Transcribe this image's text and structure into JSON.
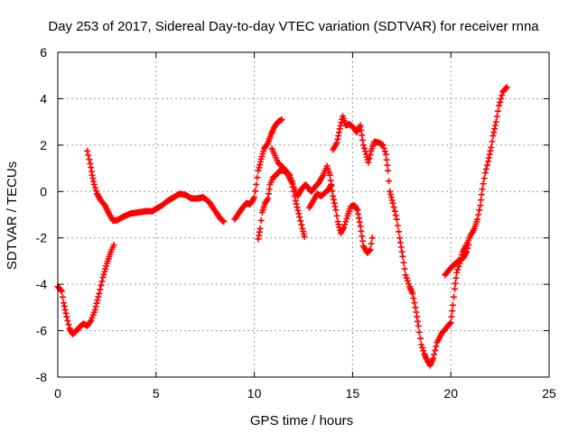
{
  "chart_data": {
    "type": "scatter",
    "title": "Day 253 of 2017, Sidereal Day-to-day VTEC variation (SDTVAR) for receiver rnna",
    "xlabel": "GPS time / hours",
    "ylabel": "SDTVAR / TECUs",
    "xlim": [
      0,
      25
    ],
    "ylim": [
      -8,
      6
    ],
    "xticks": [
      "0",
      "5",
      "10",
      "15",
      "20",
      "25"
    ],
    "yticks": [
      "-8",
      "-6",
      "-4",
      "-2",
      "0",
      "2",
      "4",
      "6"
    ],
    "grid": true,
    "marker": "+",
    "color": "#ff0000",
    "series": [
      {
        "segments": [
          [
            [
              0.0,
              -4.1
            ],
            [
              0.2,
              -4.3
            ],
            [
              0.3,
              -4.8
            ],
            [
              0.45,
              -5.4
            ],
            [
              0.6,
              -5.9
            ],
            [
              0.75,
              -6.15
            ],
            [
              0.9,
              -6.05
            ],
            [
              1.1,
              -5.85
            ],
            [
              1.3,
              -5.7
            ],
            [
              1.5,
              -5.8
            ],
            [
              1.7,
              -5.55
            ],
            [
              1.9,
              -5.1
            ],
            [
              2.1,
              -4.4
            ],
            [
              2.3,
              -3.7
            ],
            [
              2.5,
              -3.1
            ],
            [
              2.7,
              -2.6
            ],
            [
              2.85,
              -2.3
            ]
          ],
          [
            [
              1.5,
              1.75
            ],
            [
              1.65,
              1.2
            ],
            [
              1.75,
              0.7
            ],
            [
              1.85,
              0.3
            ],
            [
              2.0,
              -0.1
            ],
            [
              2.2,
              -0.4
            ],
            [
              2.4,
              -0.6
            ],
            [
              2.6,
              -0.95
            ],
            [
              2.8,
              -1.25
            ],
            [
              3.0,
              -1.25
            ],
            [
              3.3,
              -1.1
            ],
            [
              3.7,
              -0.95
            ],
            [
              4.1,
              -0.9
            ],
            [
              4.5,
              -0.85
            ],
            [
              4.8,
              -0.85
            ],
            [
              5.0,
              -0.75
            ],
            [
              5.3,
              -0.6
            ],
            [
              5.6,
              -0.4
            ],
            [
              5.9,
              -0.25
            ],
            [
              6.2,
              -0.1
            ],
            [
              6.5,
              -0.15
            ],
            [
              6.8,
              -0.3
            ],
            [
              7.1,
              -0.3
            ],
            [
              7.4,
              -0.25
            ],
            [
              7.7,
              -0.45
            ],
            [
              7.9,
              -0.7
            ],
            [
              8.1,
              -0.95
            ],
            [
              8.3,
              -1.2
            ],
            [
              8.45,
              -1.3
            ]
          ],
          [
            [
              9.0,
              -1.2
            ],
            [
              9.2,
              -0.95
            ],
            [
              9.4,
              -0.7
            ],
            [
              9.6,
              -0.5
            ],
            [
              9.8,
              -0.55
            ],
            [
              10.0,
              -0.25
            ],
            [
              10.1,
              0.3
            ],
            [
              10.2,
              0.9
            ],
            [
              10.35,
              1.4
            ],
            [
              10.5,
              1.85
            ],
            [
              10.7,
              2.1
            ],
            [
              10.85,
              2.45
            ],
            [
              11.0,
              2.75
            ],
            [
              11.2,
              3.0
            ],
            [
              11.4,
              3.1
            ]
          ],
          [
            [
              10.2,
              -2.05
            ],
            [
              10.3,
              -1.6
            ],
            [
              10.4,
              -0.9
            ],
            [
              10.55,
              -0.5
            ],
            [
              10.7,
              -0.3
            ],
            [
              10.8,
              0.3
            ],
            [
              10.95,
              0.6
            ],
            [
              11.1,
              0.7
            ],
            [
              11.3,
              0.9
            ],
            [
              11.5,
              0.9
            ],
            [
              11.7,
              0.75
            ],
            [
              11.9,
              0.4
            ],
            [
              12.1,
              -0.4
            ],
            [
              12.3,
              -1.1
            ],
            [
              12.45,
              -1.6
            ],
            [
              12.55,
              -1.95
            ]
          ],
          [
            [
              10.9,
              1.85
            ],
            [
              11.2,
              1.25
            ],
            [
              11.5,
              1.0
            ],
            [
              11.8,
              0.7
            ],
            [
              12.0,
              0.2
            ],
            [
              12.2,
              -0.2
            ],
            [
              12.4,
              0.1
            ],
            [
              12.6,
              0.3
            ],
            [
              12.9,
              0.0
            ],
            [
              13.1,
              0.2
            ],
            [
              13.3,
              0.4
            ],
            [
              13.5,
              0.7
            ],
            [
              13.7,
              1.1
            ],
            [
              13.85,
              0.7
            ],
            [
              14.0,
              -0.2
            ],
            [
              14.15,
              -0.8
            ],
            [
              14.25,
              -1.3
            ],
            [
              14.4,
              -1.8
            ],
            [
              14.55,
              -1.55
            ],
            [
              14.75,
              -1.05
            ],
            [
              14.9,
              -0.65
            ],
            [
              15.1,
              -0.6
            ],
            [
              15.25,
              -0.8
            ],
            [
              15.4,
              -1.5
            ],
            [
              15.55,
              -2.35
            ],
            [
              15.75,
              -2.65
            ],
            [
              15.9,
              -2.5
            ],
            [
              16.0,
              -2.0
            ]
          ],
          [
            [
              12.8,
              -0.7
            ],
            [
              13.0,
              -0.4
            ],
            [
              13.2,
              -0.1
            ],
            [
              13.4,
              -0.2
            ],
            [
              13.6,
              -0.05
            ],
            [
              13.8,
              0.1
            ],
            [
              13.9,
              0.3
            ]
          ],
          [
            [
              14.0,
              1.8
            ],
            [
              14.2,
              2.1
            ],
            [
              14.35,
              2.7
            ],
            [
              14.5,
              3.25
            ],
            [
              14.65,
              2.85
            ],
            [
              14.85,
              2.9
            ],
            [
              15.05,
              2.75
            ],
            [
              15.2,
              2.55
            ],
            [
              15.4,
              2.85
            ],
            [
              15.55,
              2.0
            ],
            [
              15.7,
              1.6
            ],
            [
              15.8,
              1.25
            ],
            [
              15.95,
              1.75
            ],
            [
              16.1,
              2.15
            ],
            [
              16.35,
              2.1
            ],
            [
              16.55,
              2.0
            ],
            [
              16.7,
              1.6
            ],
            [
              16.8,
              0.9
            ],
            [
              16.9,
              0.0
            ],
            [
              17.05,
              -0.5
            ],
            [
              17.25,
              -1.2
            ],
            [
              17.4,
              -2.0
            ],
            [
              17.55,
              -2.8
            ],
            [
              17.7,
              -3.6
            ],
            [
              17.9,
              -4.1
            ],
            [
              18.05,
              -4.4
            ],
            [
              18.2,
              -5.0
            ],
            [
              18.35,
              -5.8
            ],
            [
              18.5,
              -6.6
            ],
            [
              18.65,
              -7.0
            ],
            [
              18.8,
              -7.3
            ],
            [
              18.95,
              -7.5
            ],
            [
              19.1,
              -7.2
            ],
            [
              19.3,
              -6.5
            ],
            [
              19.55,
              -6.1
            ],
            [
              19.8,
              -5.85
            ],
            [
              20.0,
              -5.65
            ],
            [
              20.1,
              -4.9
            ],
            [
              20.2,
              -4.2
            ],
            [
              20.3,
              -3.5
            ],
            [
              20.45,
              -3.1
            ],
            [
              20.6,
              -2.6
            ],
            [
              20.8,
              -2.3
            ],
            [
              21.0,
              -1.9
            ],
            [
              21.2,
              -1.6
            ],
            [
              21.35,
              -1.2
            ],
            [
              21.5,
              -0.6
            ],
            [
              21.6,
              0.1
            ],
            [
              21.75,
              0.8
            ],
            [
              21.9,
              1.3
            ],
            [
              22.05,
              1.9
            ],
            [
              22.15,
              2.4
            ],
            [
              22.3,
              3.0
            ],
            [
              22.45,
              3.7
            ],
            [
              22.65,
              4.3
            ],
            [
              22.85,
              4.5
            ]
          ],
          [
            [
              19.7,
              -3.6
            ],
            [
              19.9,
              -3.4
            ],
            [
              20.1,
              -3.2
            ],
            [
              20.3,
              -3.05
            ],
            [
              20.5,
              -2.95
            ],
            [
              20.65,
              -2.85
            ],
            [
              20.8,
              -2.6
            ],
            [
              20.9,
              -2.3
            ]
          ]
        ]
      }
    ]
  }
}
